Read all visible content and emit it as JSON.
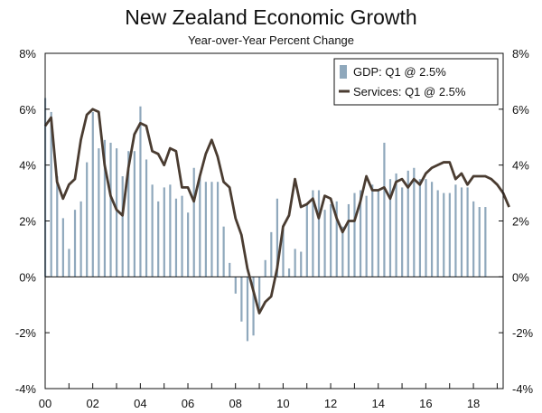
{
  "chart_data": {
    "type": "bar",
    "title": "New Zealand Economic Growth",
    "subtitle": "Year-over-Year Percent Change",
    "xlabel": "",
    "ylabel": "",
    "ylim": [
      -4,
      8
    ],
    "yticks": [
      "-4%",
      "-2%",
      "0%",
      "2%",
      "4%",
      "6%",
      "8%"
    ],
    "ytick_values": [
      -4,
      -2,
      0,
      2,
      4,
      6,
      8
    ],
    "x_range": [
      2000,
      2019.25
    ],
    "xticks": [
      "00",
      "02",
      "04",
      "06",
      "08",
      "10",
      "12",
      "14",
      "16",
      "18"
    ],
    "xtick_values": [
      2000,
      2002,
      2004,
      2006,
      2008,
      2010,
      2012,
      2014,
      2016,
      2018
    ],
    "grid": false,
    "legend": "top-right",
    "colors": {
      "gdp": "#8fa8bc",
      "services": "#4a3c31"
    },
    "series": [
      {
        "name": "GDP: Q1 @ 2.5%",
        "type": "bar",
        "values": [
          6.4,
          5.9,
          3.6,
          2.1,
          1.0,
          2.4,
          2.7,
          4.1,
          5.9,
          4.6,
          4.9,
          4.8,
          4.6,
          3.6,
          4.5,
          4.5,
          6.1,
          4.2,
          3.3,
          2.7,
          3.2,
          3.3,
          2.8,
          2.9,
          2.3,
          3.9,
          3.6,
          3.4,
          3.4,
          3.4,
          1.8,
          0.5,
          -0.6,
          -1.6,
          -2.3,
          -2.1,
          -1.3,
          0.6,
          1.6,
          2.8,
          1.7,
          0.3,
          1.0,
          0.9,
          2.6,
          3.1,
          3.1,
          2.4,
          2.6,
          2.7,
          1.8,
          2.6,
          3.0,
          3.1,
          2.9,
          3.3,
          3.1,
          4.8,
          3.5,
          3.7,
          3.2,
          3.8,
          3.9,
          3.5,
          3.5,
          3.4,
          3.1,
          3.0,
          3.0,
          3.3,
          3.2,
          3.2,
          2.7,
          2.5,
          2.5
        ]
      },
      {
        "name": "Services: Q1 @ 2.5%",
        "type": "line",
        "values": [
          5.4,
          5.7,
          3.4,
          2.8,
          3.3,
          3.5,
          4.9,
          5.8,
          6.0,
          5.9,
          4.0,
          2.9,
          2.4,
          2.2,
          3.9,
          5.1,
          5.5,
          5.4,
          4.5,
          4.4,
          4.0,
          4.6,
          4.5,
          3.2,
          3.2,
          2.7,
          3.6,
          4.4,
          4.9,
          4.3,
          3.4,
          3.2,
          2.1,
          1.5,
          0.3,
          -0.5,
          -1.3,
          -0.9,
          -0.7,
          0.3,
          1.8,
          2.2,
          3.5,
          2.5,
          2.6,
          2.8,
          2.1,
          2.9,
          2.8,
          2.1,
          1.6,
          2.0,
          2.0,
          2.7,
          3.6,
          3.1,
          3.1,
          3.2,
          2.8,
          3.4,
          3.5,
          3.2,
          3.5,
          3.3,
          3.7,
          3.9,
          4.0,
          4.1,
          4.1,
          3.5,
          3.7,
          3.3,
          3.6,
          3.6,
          3.6,
          3.5,
          3.3,
          3.0,
          2.5
        ]
      }
    ]
  }
}
